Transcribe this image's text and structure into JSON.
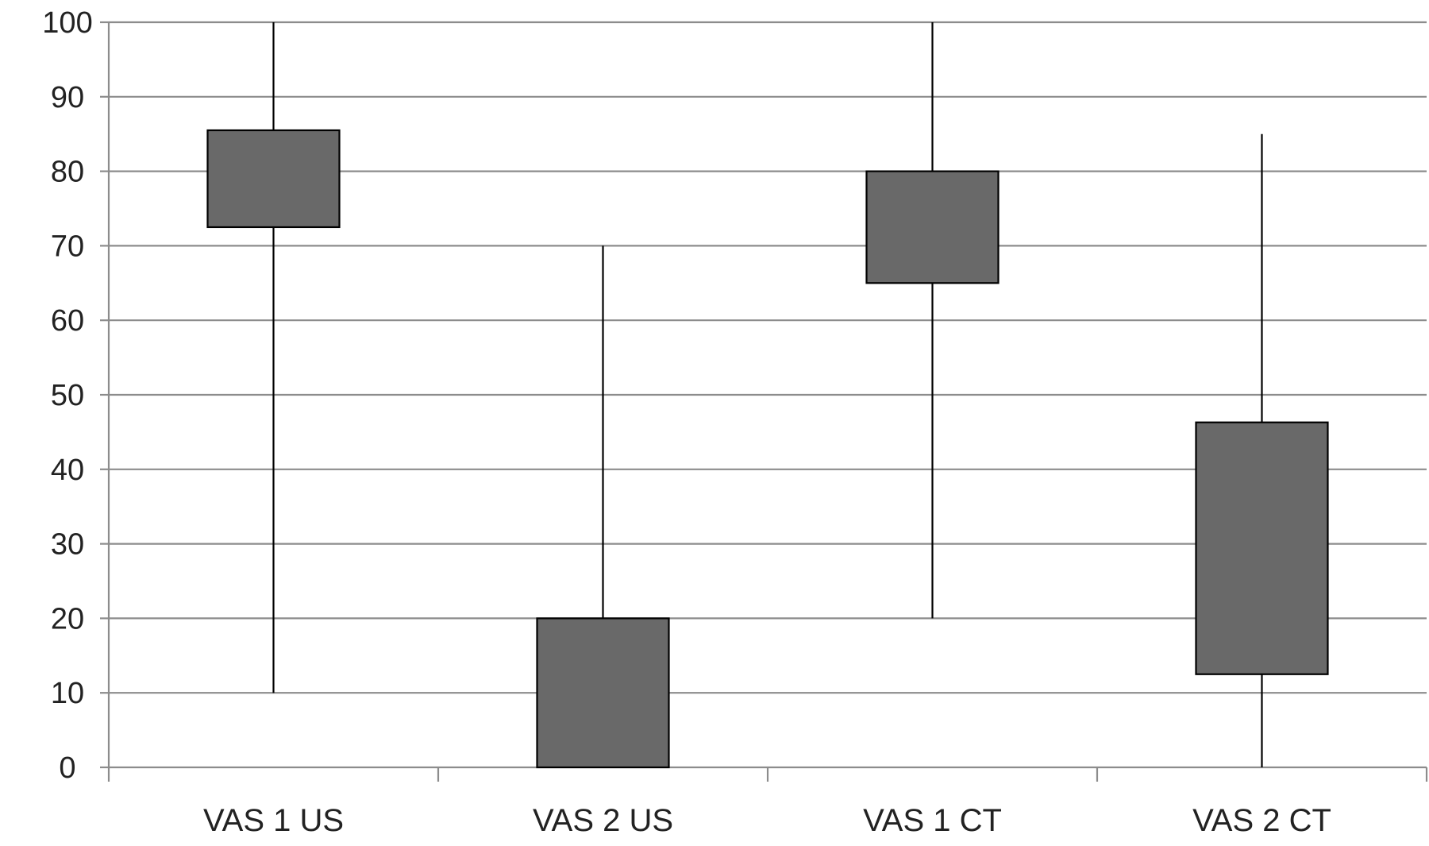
{
  "chart_data": {
    "type": "box",
    "categories": [
      "VAS 1 US",
      "VAS 2 US",
      "VAS 1 CT",
      "VAS 2 CT"
    ],
    "boxes": [
      {
        "category": "VAS 1 US",
        "min": 10,
        "q1": 72.5,
        "q3": 85.5,
        "max": 100
      },
      {
        "category": "VAS 2 US",
        "min": 0,
        "q1": 0,
        "q3": 20,
        "max": 70
      },
      {
        "category": "VAS 1 CT",
        "min": 20,
        "q1": 65,
        "q3": 80,
        "max": 100
      },
      {
        "category": "VAS 2 CT",
        "min": 0,
        "q1": 12.5,
        "q3": 46.3,
        "max": 85
      }
    ],
    "title": "",
    "xlabel": "",
    "ylabel": "",
    "ylim": [
      0,
      100
    ],
    "yticks": [
      "0",
      "10",
      "20",
      "30",
      "40",
      "50",
      "60",
      "70",
      "80",
      "90",
      "100"
    ],
    "grid": true,
    "legend": "none",
    "colors": {
      "box_fill": "#696969",
      "box_stroke": "#000000",
      "whisker": "#000000",
      "grid": "#8c8c8c",
      "axis": "#8c8c8c"
    }
  }
}
